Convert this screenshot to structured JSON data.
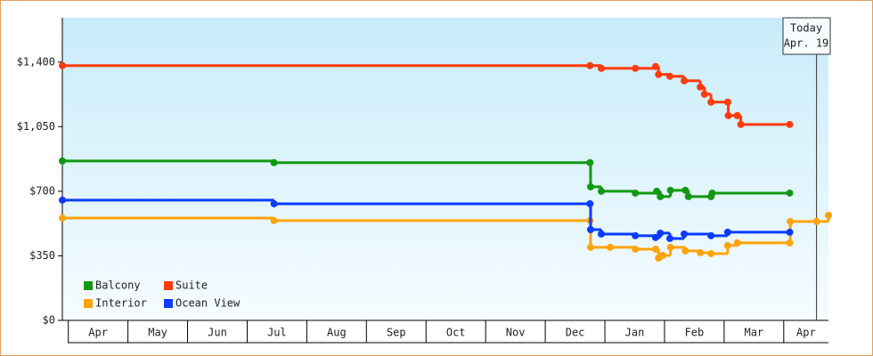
{
  "chart_data": {
    "type": "step-line",
    "ylim": [
      0,
      1640
    ],
    "yticks": [
      {
        "value": 0,
        "label": "$0"
      },
      {
        "value": 350,
        "label": "$350"
      },
      {
        "value": 700,
        "label": "$700"
      },
      {
        "value": 1050,
        "label": "$1,050"
      },
      {
        "value": 1400,
        "label": "$1,400"
      }
    ],
    "xlim": [
      -0.1,
      12.75
    ],
    "xticks": [
      {
        "value": 0,
        "label": "Apr"
      },
      {
        "value": 1,
        "label": "May"
      },
      {
        "value": 2,
        "label": "Jun"
      },
      {
        "value": 3,
        "label": "Jul"
      },
      {
        "value": 4,
        "label": "Aug"
      },
      {
        "value": 5,
        "label": "Sep"
      },
      {
        "value": 6,
        "label": "Oct"
      },
      {
        "value": 7,
        "label": "Nov"
      },
      {
        "value": 8,
        "label": "Dec"
      },
      {
        "value": 9,
        "label": "Jan"
      },
      {
        "value": 10,
        "label": "Feb"
      },
      {
        "value": 11,
        "label": "Mar"
      },
      {
        "value": 12,
        "label": "Apr"
      }
    ],
    "annotation": {
      "x": 12.55,
      "lines": [
        "Today",
        "Apr. 19"
      ]
    },
    "legend": "bottom-left",
    "series": [
      {
        "name": "Balcony",
        "color": "#129912",
        "x": [
          -0.1,
          3.45,
          8.75,
          8.76,
          8.94,
          9.51,
          9.87,
          9.93,
          10.1,
          10.35,
          10.4,
          10.78,
          10.8,
          12.1
        ],
        "values": [
          864,
          855,
          855,
          724,
          700,
          690,
          700,
          671,
          705,
          705,
          671,
          671,
          690,
          690
        ]
      },
      {
        "name": "Suite",
        "color": "#ff3b0a",
        "x": [
          -0.1,
          8.75,
          8.94,
          9.51,
          9.85,
          9.9,
          10.09,
          10.33,
          10.6,
          10.67,
          10.78,
          11.06,
          11.07,
          11.22,
          11.28,
          12.1
        ],
        "values": [
          1381,
          1381,
          1366,
          1366,
          1376,
          1333,
          1323,
          1299,
          1265,
          1226,
          1183,
          1183,
          1110,
          1110,
          1062,
          1062
        ]
      },
      {
        "name": "Interior",
        "color": "#ffa30a",
        "x": [
          -0.1,
          3.45,
          8.75,
          8.76,
          9.09,
          9.51,
          9.85,
          9.9,
          9.97,
          10.1,
          10.35,
          10.6,
          10.78,
          11.06,
          11.22,
          12.1,
          12.11,
          12.55,
          12.75
        ],
        "values": [
          555,
          541,
          541,
          396,
          396,
          386,
          386,
          338,
          352,
          396,
          377,
          367,
          362,
          406,
          420,
          420,
          536,
          536,
          570
        ]
      },
      {
        "name": "Ocean View",
        "color": "#0a3cff",
        "x": [
          -0.1,
          3.45,
          8.75,
          8.76,
          8.94,
          9.51,
          9.85,
          9.93,
          10.09,
          10.33,
          10.78,
          11.06,
          12.1
        ],
        "values": [
          652,
          632,
          632,
          492,
          468,
          459,
          449,
          473,
          444,
          468,
          459,
          478,
          478
        ]
      }
    ]
  }
}
